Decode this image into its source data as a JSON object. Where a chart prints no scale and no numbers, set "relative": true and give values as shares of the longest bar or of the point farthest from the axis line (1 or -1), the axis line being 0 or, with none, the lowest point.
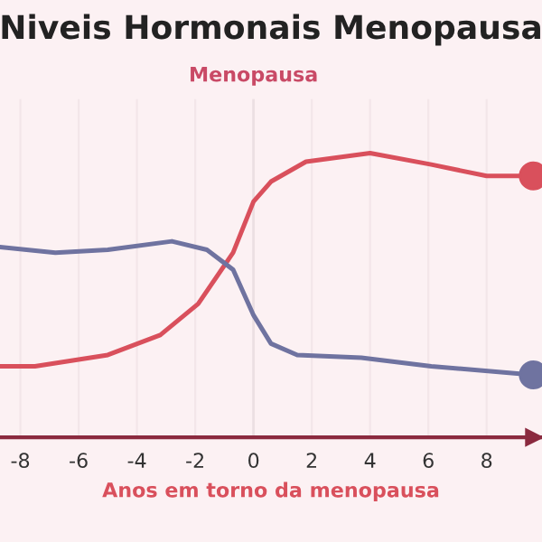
{
  "chart_data": {
    "type": "line",
    "title": "Niveis Hormonais Menopausa",
    "xlabel": "Anos em torno da menopausa",
    "relative": true,
    "series": [
      {
        "color": "#d9505c",
        "x": [
          -8.7,
          -7.5,
          -5,
          -3.2,
          -1.9,
          -0.7,
          0,
          0.6,
          1.8,
          4,
          6.1,
          8,
          9.6
        ],
        "values": [
          0.25,
          0.25,
          0.29,
          0.36,
          0.47,
          0.65,
          0.83,
          0.9,
          0.97,
          1,
          0.96,
          0.92,
          0.92
        ]
      },
      {
        "color": "#6f73a0",
        "x": [
          -8.7,
          -6.8,
          -5,
          -2.8,
          -1.6,
          -0.7,
          0,
          0.6,
          1.5,
          3.7,
          6.1,
          9.6
        ],
        "values": [
          0.67,
          0.65,
          0.66,
          0.69,
          0.66,
          0.59,
          0.43,
          0.33,
          0.29,
          0.28,
          0.25,
          0.22
        ]
      },
      {
        "type": "scatter",
        "color": "#d9505c",
        "x": [
          9.6
        ],
        "values": [
          0.92
        ]
      },
      {
        "type": "scatter",
        "color": "#6f73a0",
        "x": [
          9.6
        ],
        "values": [
          0.22
        ]
      }
    ],
    "xlim": [
      -8.7,
      9.9
    ],
    "xticks": [
      -8,
      -6,
      -4,
      -2,
      0,
      2,
      4,
      6,
      8
    ],
    "grid": "x",
    "line_style": "solid",
    "ref_lines": [
      {
        "axis": "x",
        "value": 0,
        "label": "Menopausa",
        "color": "#ece0e3"
      }
    ]
  }
}
